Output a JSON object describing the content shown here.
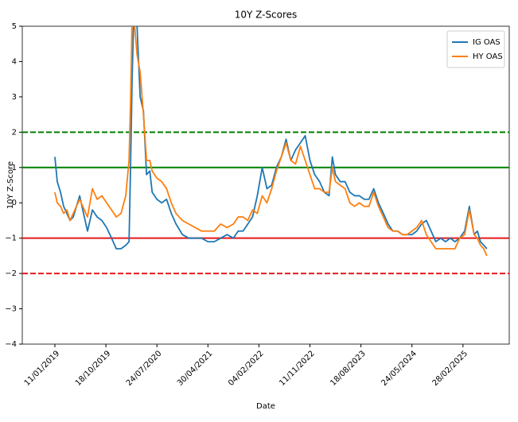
{
  "chart_data": {
    "type": "line",
    "title": "10Y Z-Scores",
    "x_label": "Date",
    "y_label": "10Y Z-Score",
    "x": [
      "11/01/2019",
      "24/01/2019",
      "11/02/2019",
      "28/02/2019",
      "18/03/2019",
      "04/04/2019",
      "22/04/2019",
      "27/05/2019",
      "13/06/2019",
      "09/07/2019",
      "05/08/2019",
      "31/08/2019",
      "26/09/2019",
      "22/10/2019",
      "18/11/2019",
      "14/12/2019",
      "09/01/2020",
      "04/02/2020",
      "22/02/2020",
      "02/03/2020",
      "10/03/2020",
      "19/03/2020",
      "06/04/2020",
      "23/04/2020",
      "11/05/2020",
      "28/05/2020",
      "15/06/2020",
      "28/06/2020",
      "24/07/2020",
      "19/08/2020",
      "15/09/2020",
      "11/10/2020",
      "06/11/2020",
      "11/12/2020",
      "15/01/2021",
      "19/02/2021",
      "26/03/2021",
      "30/04/2021",
      "04/06/2021",
      "09/07/2021",
      "13/08/2021",
      "17/09/2021",
      "13/10/2021",
      "09/11/2021",
      "05/12/2021",
      "31/12/2021",
      "26/01/2022",
      "22/02/2022",
      "20/03/2022",
      "15/04/2022",
      "11/05/2022",
      "07/06/2022",
      "03/07/2022",
      "29/07/2022",
      "24/08/2022",
      "20/09/2022",
      "16/10/2022",
      "11/11/2022",
      "07/12/2022",
      "03/01/2023",
      "29/01/2023",
      "24/02/2023",
      "14/03/2023",
      "31/03/2023",
      "26/04/2023",
      "23/05/2023",
      "18/06/2023",
      "14/07/2023",
      "09/08/2023",
      "05/09/2023",
      "01/10/2023",
      "27/10/2023",
      "22/11/2023",
      "19/12/2023",
      "14/01/2024",
      "09/02/2024",
      "06/03/2024",
      "02/04/2024",
      "28/04/2024",
      "24/05/2024",
      "19/06/2024",
      "16/07/2024",
      "11/08/2024",
      "06/09/2024",
      "02/10/2024",
      "29/10/2024",
      "24/11/2024",
      "20/12/2024",
      "15/01/2025",
      "10/02/2025",
      "09/03/2025",
      "04/04/2025",
      "30/04/2025",
      "18/05/2025",
      "04/06/2025",
      "22/06/2025",
      "09/07/2025"
    ],
    "series": [
      {
        "name": "IG OAS",
        "color": "#1f77b4",
        "values": [
          1.3,
          0.6,
          0.3,
          -0.1,
          -0.3,
          -0.5,
          -0.4,
          0.2,
          -0.2,
          -0.8,
          -0.2,
          -0.4,
          -0.5,
          -0.7,
          -1.0,
          -1.3,
          -1.3,
          -1.2,
          -1.1,
          1.2,
          3.5,
          5.3,
          5.0,
          3.0,
          2.6,
          0.8,
          0.9,
          0.3,
          0.1,
          0.0,
          0.1,
          -0.3,
          -0.6,
          -0.9,
          -1.0,
          -1.0,
          -1.0,
          -1.1,
          -1.1,
          -1.0,
          -0.9,
          -1.0,
          -0.8,
          -0.8,
          -0.6,
          -0.4,
          0.2,
          1.0,
          0.4,
          0.5,
          1.0,
          1.3,
          1.8,
          1.2,
          1.5,
          1.7,
          1.9,
          1.2,
          0.8,
          0.6,
          0.3,
          0.2,
          1.3,
          0.8,
          0.6,
          0.6,
          0.3,
          0.2,
          0.2,
          0.1,
          0.1,
          0.4,
          0.0,
          -0.3,
          -0.6,
          -0.8,
          -0.8,
          -0.9,
          -0.9,
          -0.9,
          -0.8,
          -0.6,
          -0.5,
          -0.8,
          -1.1,
          -1.0,
          -1.1,
          -1.0,
          -1.1,
          -1.0,
          -0.8,
          -0.1,
          -0.9,
          -0.8,
          -1.1,
          -1.2,
          -1.3
        ]
      },
      {
        "name": "HY OAS",
        "color": "#ff7f0e",
        "values": [
          0.3,
          0.0,
          -0.1,
          -0.3,
          -0.2,
          -0.5,
          -0.3,
          0.1,
          -0.1,
          -0.4,
          0.4,
          0.1,
          0.2,
          0.0,
          -0.2,
          -0.4,
          -0.3,
          0.2,
          1.2,
          3.0,
          5.3,
          5.3,
          4.2,
          3.7,
          2.5,
          1.2,
          1.2,
          0.9,
          0.7,
          0.6,
          0.4,
          0.0,
          -0.3,
          -0.5,
          -0.6,
          -0.7,
          -0.8,
          -0.8,
          -0.8,
          -0.6,
          -0.7,
          -0.6,
          -0.4,
          -0.4,
          -0.5,
          -0.2,
          -0.3,
          0.2,
          0.0,
          0.4,
          0.9,
          1.3,
          1.7,
          1.2,
          1.1,
          1.6,
          1.2,
          0.8,
          0.4,
          0.4,
          0.3,
          0.3,
          1.0,
          0.6,
          0.5,
          0.4,
          0.0,
          -0.1,
          0.0,
          -0.1,
          -0.1,
          0.3,
          -0.1,
          -0.4,
          -0.7,
          -0.8,
          -0.8,
          -0.9,
          -0.9,
          -0.8,
          -0.7,
          -0.5,
          -0.9,
          -1.1,
          -1.3,
          -1.3,
          -1.3,
          -1.3,
          -1.3,
          -1.0,
          -0.9,
          -0.2,
          -0.9,
          -1.0,
          -1.2,
          -1.3,
          -1.5
        ]
      }
    ],
    "xlim": [
      "16/07/2018",
      "09/11/2025"
    ],
    "xticks": [
      "11/01/2019",
      "18/10/2019",
      "24/07/2020",
      "30/04/2021",
      "04/02/2022",
      "11/11/2022",
      "18/08/2023",
      "24/05/2024",
      "28/02/2025"
    ],
    "ylim": [
      -4,
      5
    ],
    "yticks": [
      {
        "value": -4,
        "label": "−4"
      },
      {
        "value": -3,
        "label": "−3"
      },
      {
        "value": -2,
        "label": "−2"
      },
      {
        "value": -1,
        "label": "−1"
      },
      0,
      1,
      2,
      3,
      4,
      5
    ],
    "reference_lines": [
      {
        "value": 2,
        "color": "#008000",
        "style": "dashed"
      },
      {
        "value": 1,
        "color": "#008000",
        "style": "solid"
      },
      {
        "value": -1,
        "color": "#e41a1c",
        "style": "solid"
      },
      {
        "value": -2,
        "color": "#e41a1c",
        "style": "dashed"
      }
    ],
    "legend": "upper right",
    "grid": false
  }
}
